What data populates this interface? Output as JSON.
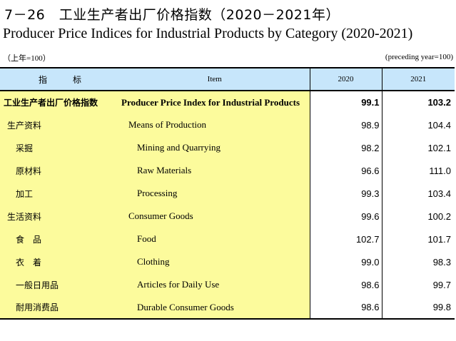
{
  "title_cn": "7－26　工业生产者出厂价格指数（2020－2021年）",
  "title_en": "Producer Price Indices for Industrial Products by Category (2020-2021)",
  "unit_left": "（上年=100）",
  "unit_right": "(preceding year=100)",
  "header": {
    "cn": "指标",
    "en": "Item",
    "y1": "2020",
    "y2": "2021"
  },
  "rows": [
    {
      "cn": "工业生产者出厂价格指数",
      "en": "Producer Price Index for Industrial Products",
      "v2020": "99.1",
      "v2021": "103.2"
    },
    {
      "cn": "生产资料",
      "en": "Means of Production",
      "v2020": "98.9",
      "v2021": "104.4"
    },
    {
      "cn": "采掘",
      "en": "Mining and Quarrying",
      "v2020": "98.2",
      "v2021": "102.1"
    },
    {
      "cn": "原材料",
      "en": "Raw Materials",
      "v2020": "96.6",
      "v2021": "111.0"
    },
    {
      "cn": "加工",
      "en": "Processing",
      "v2020": "99.3",
      "v2021": "103.4"
    },
    {
      "cn": "生活资料",
      "en": "Consumer Goods",
      "v2020": "99.6",
      "v2021": "100.2"
    },
    {
      "cn": "食　品",
      "en": "Food",
      "v2020": "102.7",
      "v2021": "101.7"
    },
    {
      "cn": "衣　着",
      "en": "Clothing",
      "v2020": "99.0",
      "v2021": "98.3"
    },
    {
      "cn": "一般日用品",
      "en": "Articles for Daily Use",
      "v2020": "98.6",
      "v2021": "99.7"
    },
    {
      "cn": "耐用消费品",
      "en": "Durable Consumer Goods",
      "v2020": "98.6",
      "v2021": "99.8"
    }
  ]
}
